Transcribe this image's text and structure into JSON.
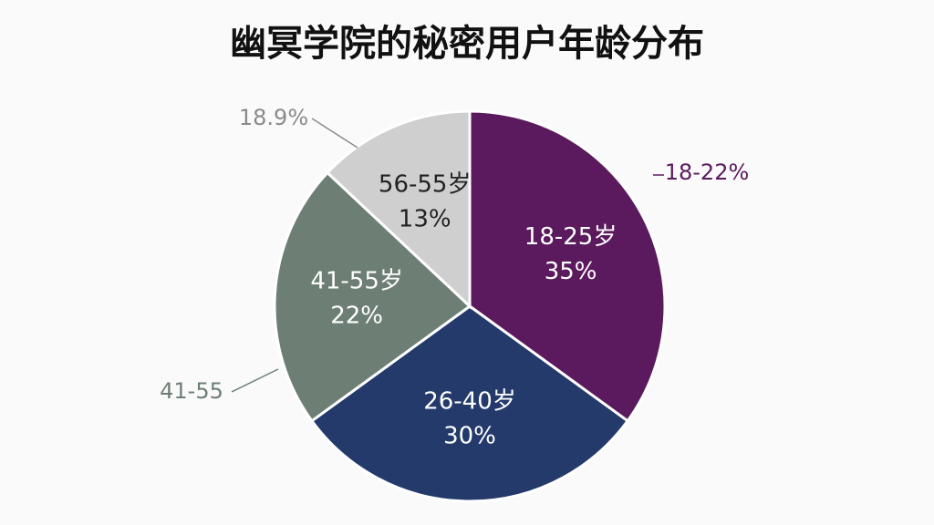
{
  "chart_data": {
    "type": "pie",
    "title": "幽冥学院的秘密用户年龄分布",
    "categories": [
      "18-25岁",
      "26-40岁",
      "41-55岁",
      "56-55岁"
    ],
    "values": [
      35,
      30,
      22,
      13
    ],
    "value_labels": [
      "35%",
      "30%",
      "22%",
      "13%"
    ],
    "colors": [
      "#5c1a5e",
      "#233a6b",
      "#6d7f74",
      "#cfcfcf"
    ],
    "annotations": [
      "18.9%",
      "18-22%",
      "41-55"
    ]
  }
}
